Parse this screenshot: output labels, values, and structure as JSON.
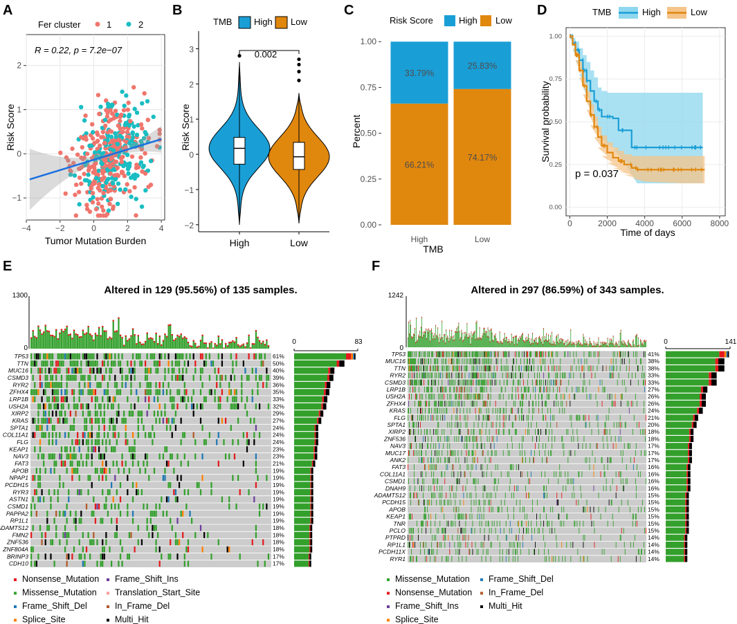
{
  "colors": {
    "teal": "#19BDC2",
    "salmon": "#F0756D",
    "blue": "#1A9ED6",
    "orange": "#E0870E",
    "light_blue": "#8ED7EE",
    "light_orange": "#F5C48A",
    "missense": "#33A02C",
    "nonsense": "#E31A1C",
    "frame_shift_del": "#1F78B4",
    "frame_shift_ins": "#6A3D9A",
    "splice_site": "#FF7F00",
    "in_frame_del": "#B15928",
    "translation_start_site": "#FB9A99",
    "multi_hit": "#000000",
    "no_mutation": "#CCCCCC"
  },
  "panel_labels": [
    "A",
    "B",
    "C",
    "D",
    "E",
    "F"
  ],
  "chart_data": [
    {
      "panel": "A",
      "type": "scatter",
      "xlabel": "Tumor Mutation Burden",
      "ylabel": "Risk Score",
      "legend_title": "Fer cluster",
      "legend_entries": [
        "1",
        "2"
      ],
      "annotation": "R = 0.22, p = 7.2e−07",
      "xlim": [
        -4,
        4.2
      ],
      "ylim": [
        -1.5,
        2.7
      ],
      "xticks": [
        "−4",
        "−2",
        "0",
        "2",
        "4"
      ],
      "yticks": [
        "−1",
        "0",
        "1",
        "2"
      ],
      "regression": {
        "x": [
          -3.8,
          4.0
        ],
        "y": [
          -0.58,
          0.33
        ]
      }
    },
    {
      "panel": "B",
      "type": "violin",
      "legend_title": "TMB",
      "legend_entries": [
        "High",
        "Low"
      ],
      "categories": [
        "High",
        "Low"
      ],
      "ylabel": "Risk Score",
      "ylim": [
        -2.2,
        3.5
      ],
      "yticks": [
        "−2",
        "−1",
        "0",
        "1",
        "2",
        "3"
      ],
      "pvalue_label": "0.002",
      "series": [
        {
          "name": "High",
          "median": 0.17,
          "q1": -0.28,
          "q3": 0.48,
          "whisker_low": -2.0,
          "whisker_high": 2.62,
          "outliers": [
            2.8
          ]
        },
        {
          "name": "Low",
          "median": -0.07,
          "q1": -0.43,
          "q3": 0.34,
          "whisker_low": -1.95,
          "whisker_high": 1.73,
          "outliers": [
            2.1,
            2.35,
            2.55,
            2.7
          ]
        }
      ]
    },
    {
      "panel": "C",
      "type": "bar",
      "stacked": true,
      "legend_title": "Risk Score",
      "legend_entries": [
        "High",
        "Low"
      ],
      "categories": [
        "High",
        "Low"
      ],
      "xlabel": "TMB",
      "ylabel": "Percent",
      "ylim": [
        0,
        1
      ],
      "yticks": [
        "0.00",
        "0.25",
        "0.50",
        "0.75",
        "1.00"
      ],
      "series": [
        {
          "name": "Low",
          "values": [
            0.6621,
            0.7417
          ],
          "labels": [
            "66.21%",
            "74.17%"
          ]
        },
        {
          "name": "High",
          "values": [
            0.3379,
            0.2583
          ],
          "labels": [
            "33.79%",
            "25.83%"
          ]
        }
      ]
    },
    {
      "panel": "D",
      "type": "line",
      "subtype": "kaplan-meier",
      "legend_title": "TMB",
      "legend_entries": [
        "High",
        "Low"
      ],
      "xlabel": "Time of days",
      "ylabel": "Survival probability",
      "xlim": [
        -200,
        8300
      ],
      "ylim": [
        -0.05,
        1.05
      ],
      "xticks": [
        "0",
        "2000",
        "4000",
        "6000",
        "8000"
      ],
      "yticks": [
        "0.00",
        "0.25",
        "0.50",
        "0.75",
        "1.00"
      ],
      "pvalue_label": "p = 0.037",
      "series": [
        {
          "name": "High",
          "x": [
            0,
            150,
            300,
            500,
            700,
            900,
            1100,
            1300,
            1500,
            1700,
            2000,
            2300,
            2600,
            2900,
            3300,
            3600,
            4000,
            5000,
            6000,
            7100
          ],
          "y": [
            1.0,
            0.96,
            0.92,
            0.86,
            0.8,
            0.74,
            0.68,
            0.62,
            0.57,
            0.53,
            0.53,
            0.52,
            0.45,
            0.45,
            0.35,
            0.35,
            0.35,
            0.35,
            0.35,
            0.35
          ],
          "ci_low": [
            1.0,
            0.92,
            0.86,
            0.78,
            0.7,
            0.62,
            0.55,
            0.48,
            0.42,
            0.37,
            0.36,
            0.34,
            0.27,
            0.26,
            0.14,
            0.14,
            0.14,
            0.14,
            0.14,
            0.14
          ],
          "ci_high": [
            1.0,
            0.99,
            0.97,
            0.93,
            0.89,
            0.85,
            0.8,
            0.76,
            0.7,
            0.68,
            0.67,
            0.67,
            0.67,
            0.67,
            0.67,
            0.67,
            0.67,
            0.67,
            0.67,
            0.67
          ]
        },
        {
          "name": "Low",
          "x": [
            0,
            150,
            300,
            500,
            700,
            900,
            1100,
            1300,
            1500,
            1700,
            2000,
            2300,
            2600,
            2900,
            3300,
            3600,
            4000,
            5000,
            6000,
            7200
          ],
          "y": [
            1.0,
            0.95,
            0.89,
            0.8,
            0.71,
            0.62,
            0.54,
            0.47,
            0.41,
            0.36,
            0.32,
            0.29,
            0.27,
            0.25,
            0.23,
            0.22,
            0.22,
            0.22,
            0.22,
            0.22
          ],
          "ci_low": [
            1.0,
            0.93,
            0.86,
            0.76,
            0.66,
            0.57,
            0.48,
            0.41,
            0.35,
            0.3,
            0.26,
            0.23,
            0.21,
            0.19,
            0.17,
            0.15,
            0.15,
            0.14,
            0.14,
            0.14
          ],
          "ci_high": [
            1.0,
            0.97,
            0.92,
            0.85,
            0.76,
            0.68,
            0.6,
            0.53,
            0.47,
            0.42,
            0.38,
            0.35,
            0.33,
            0.31,
            0.3,
            0.3,
            0.3,
            0.3,
            0.3,
            0.3
          ]
        }
      ]
    },
    {
      "panel": "E",
      "type": "heatmap",
      "subtype": "oncoplot",
      "title": "Altered in 129 (95.56%) of 135 samples.",
      "tmb_axis": [
        "1300",
        "0"
      ],
      "count_axis": [
        "0",
        "83"
      ],
      "count_max": 83,
      "n_samples": 135,
      "genes": [
        "TP53",
        "TTN",
        "MUC16",
        "CSMD3",
        "RYR2",
        "ZFHX4",
        "LRP1B",
        "USH2A",
        "XIRP2",
        "KRAS",
        "SPTA1",
        "COL11A1",
        "FLG",
        "KEAP1",
        "NAV3",
        "FAT3",
        "APOB",
        "NPAP1",
        "PCDH15",
        "RYR3",
        "ASTN1",
        "CSMD1",
        "PAPPA2",
        "RP1L1",
        "ADAMTS12",
        "FMN2",
        "ZNF536",
        "ZNF804A",
        "BRINP3",
        "CDH10"
      ],
      "pcts": [
        "61%",
        "50%",
        "40%",
        "39%",
        "36%",
        "35%",
        "33%",
        "32%",
        "29%",
        "27%",
        "24%",
        "24%",
        "24%",
        "23%",
        "23%",
        "21%",
        "19%",
        "19%",
        "19%",
        "19%",
        "19%",
        "19%",
        "19%",
        "19%",
        "18%",
        "18%",
        "18%",
        "18%",
        "17%",
        "17%"
      ],
      "legend_entries": [
        "Nonsense_Mutation",
        "Missense_Mutation",
        "Frame_Shift_Del",
        "Splice_Site",
        "Frame_Shift_Ins",
        "Translation_Start_Site",
        "In_Frame_Del",
        "Multi_Hit"
      ]
    },
    {
      "panel": "F",
      "type": "heatmap",
      "subtype": "oncoplot",
      "title": "Altered in 297 (86.59%) of 343 samples.",
      "tmb_axis": [
        "1242",
        "0"
      ],
      "count_axis": [
        "0",
        "141"
      ],
      "count_max": 141,
      "n_samples": 343,
      "genes": [
        "TP53",
        "MUC16",
        "TTN",
        "RYR2",
        "CSMD3",
        "LRP1B",
        "USH2A",
        "ZFHX4",
        "KRAS",
        "FLG",
        "SPTA1",
        "XIRP2",
        "ZNF536",
        "NAV3",
        "MUC17",
        "ANK2",
        "FAT3",
        "COL11A1",
        "CSMD1",
        "DNAH9",
        "ADAMTS12",
        "PCDH15",
        "APOB",
        "KEAP1",
        "TNR",
        "PCLO",
        "PTPRD",
        "RP1L1",
        "PCDH11X",
        "RYR1"
      ],
      "pcts": [
        "41%",
        "38%",
        "38%",
        "33%",
        "33%",
        "27%",
        "26%",
        "26%",
        "24%",
        "21%",
        "20%",
        "18%",
        "18%",
        "17%",
        "17%",
        "17%",
        "16%",
        "16%",
        "16%",
        "16%",
        "15%",
        "15%",
        "15%",
        "15%",
        "15%",
        "15%",
        "14%",
        "14%",
        "14%",
        "14%"
      ],
      "legend_entries": [
        "Missense_Mutation",
        "Nonsense_Mutation",
        "Frame_Shift_Ins",
        "Splice_Site",
        "Frame_Shift_Del",
        "In_Frame_Del",
        "Multi_Hit"
      ]
    }
  ]
}
